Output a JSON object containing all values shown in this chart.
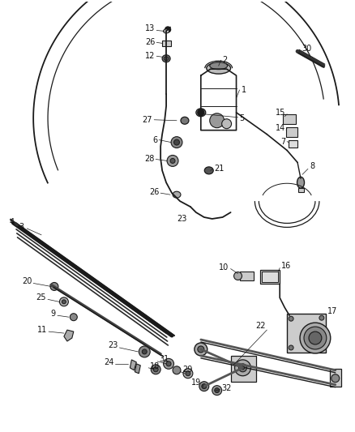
{
  "bg_color": "#ffffff",
  "line_color": "#1a1a1a",
  "label_color": "#111111",
  "fig_w": 4.38,
  "fig_h": 5.33,
  "dpi": 100
}
